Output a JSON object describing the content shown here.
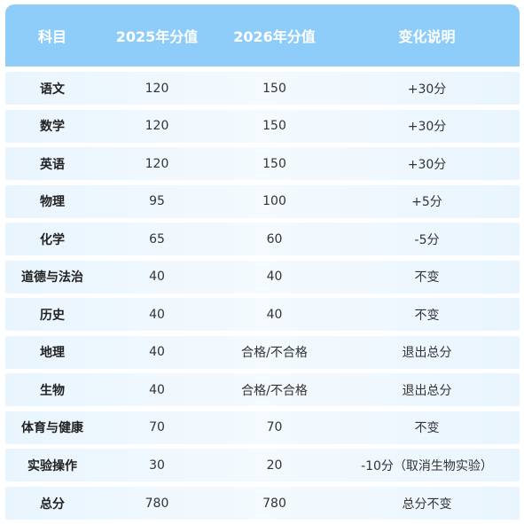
{
  "table": {
    "headers": [
      "科目",
      "2025年分值",
      "2026年分值",
      "变化说明"
    ],
    "rows": [
      [
        "语文",
        "120",
        "150",
        "+30分"
      ],
      [
        "数学",
        "120",
        "150",
        "+30分"
      ],
      [
        "英语",
        "120",
        "150",
        "+30分"
      ],
      [
        "物理",
        "95",
        "100",
        "+5分"
      ],
      [
        "化学",
        "65",
        "60",
        "-5分"
      ],
      [
        "道德与法治",
        "40",
        "40",
        "不变"
      ],
      [
        "历史",
        "40",
        "40",
        "不变"
      ],
      [
        "地理",
        "40",
        "合格/不合格",
        "退出总分"
      ],
      [
        "生物",
        "40",
        "合格/不合格",
        "退出总分"
      ],
      [
        "体育与健康",
        "70",
        "70",
        "不变"
      ],
      [
        "实验操作",
        "30",
        "20",
        "-10分（取消生物实验）"
      ],
      [
        "总分",
        "780",
        "780",
        "总分不变"
      ]
    ]
  },
  "colors": {
    "header_bg": "#8ecdf9",
    "row_bg": "#e9f5fe"
  }
}
